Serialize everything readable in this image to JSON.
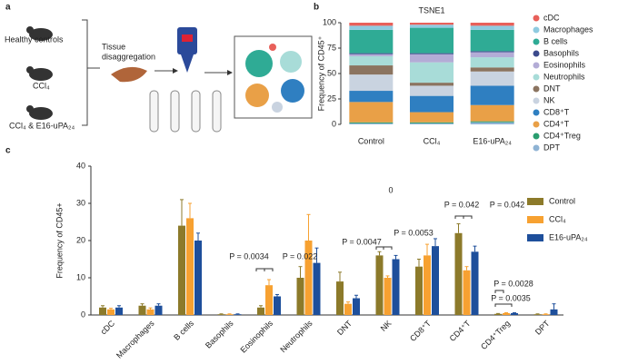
{
  "panel_labels": [
    "a",
    "b",
    "c"
  ],
  "diagram": {
    "groups": [
      "Healthy controls",
      "CCl₄",
      "CCl₄ & E16-uPA₂₄"
    ],
    "step": [
      "Tissue",
      "disaggregation"
    ]
  },
  "chart_data": [
    {
      "type": "stacked-bar",
      "title": "TSNE1",
      "y_label": "Frequency of CD45⁺",
      "categories": [
        "Control",
        "CCl₄",
        "E16-uPA₂₄"
      ],
      "ylim": [
        0,
        100
      ],
      "yticks": [
        0,
        25,
        50,
        75,
        100
      ],
      "series": [
        {
          "name": "DPT",
          "color": "#8fb3d4",
          "values": [
            1,
            1,
            2
          ]
        },
        {
          "name": "CD4⁺Treg",
          "color": "#2a9d6f",
          "values": [
            1,
            1,
            1
          ]
        },
        {
          "name": "CD4⁺T",
          "color": "#e9a047",
          "values": [
            20,
            10,
            16
          ]
        },
        {
          "name": "CD8⁺T",
          "color": "#2f7fc1",
          "values": [
            11,
            16,
            19
          ]
        },
        {
          "name": "NK",
          "color": "#c9d3e0",
          "values": [
            16,
            10,
            14
          ]
        },
        {
          "name": "DNT",
          "color": "#8b7460",
          "values": [
            9,
            3,
            4
          ]
        },
        {
          "name": "Neutrophils",
          "color": "#a8dcd8",
          "values": [
            9,
            20,
            10
          ]
        },
        {
          "name": "Eosinophils",
          "color": "#b3acd6",
          "values": [
            2,
            8,
            5
          ]
        },
        {
          "name": "Basophils",
          "color": "#3b4a8c",
          "values": [
            1,
            1,
            1
          ]
        },
        {
          "name": "B cells",
          "color": "#2fab95",
          "values": [
            23,
            25,
            21
          ]
        },
        {
          "name": "Macrophages",
          "color": "#8fcbe0",
          "values": [
            4,
            3,
            4
          ]
        },
        {
          "name": "cDC",
          "color": "#e8605a",
          "values": [
            3,
            2,
            3
          ]
        }
      ]
    },
    {
      "type": "grouped-bar",
      "y_label": "Frequency of CD45+",
      "categories": [
        "cDC",
        "Macrophages",
        "B cells",
        "Basophils",
        "Eosinophils",
        "Neutrophils",
        "DNT",
        "NK",
        "CD8⁺T",
        "CD4⁺T",
        "CD4⁺Treg",
        "DPT"
      ],
      "ylim": [
        0,
        40
      ],
      "yticks": [
        0,
        10,
        20,
        30,
        40
      ],
      "series": [
        {
          "name": "Control",
          "color": "#8c7a2a",
          "values": [
            2,
            2.5,
            24,
            0.2,
            2,
            10,
            9,
            16,
            13,
            22,
            0.3,
            0.2
          ],
          "errors": [
            0.5,
            0.5,
            7,
            0.1,
            0.5,
            3,
            2.5,
            1,
            2,
            2.5,
            0.1,
            0.1
          ]
        },
        {
          "name": "CCl₄",
          "color": "#f7a131",
          "values": [
            1.5,
            1.5,
            26,
            0.2,
            8,
            20,
            3,
            10,
            16,
            12,
            0.5,
            0.2
          ],
          "errors": [
            0.3,
            0.4,
            4,
            0.1,
            1.5,
            7,
            0.5,
            0.5,
            3,
            1,
            0.1,
            0.1
          ]
        },
        {
          "name": "E16-uPA₂₄",
          "color": "#1e4f9b",
          "values": [
            2,
            2.5,
            20,
            0.2,
            5,
            14,
            4.5,
            15,
            18.5,
            17,
            0.5,
            1.5
          ],
          "errors": [
            0.5,
            0.5,
            2,
            0.1,
            0.5,
            4,
            0.8,
            1,
            2,
            1.5,
            0.1,
            1.5
          ]
        }
      ],
      "annotations": [
        "P = 0.0034",
        "P = 0.022",
        "P = 0.0047",
        "P = 0.0053",
        "P = 0.042",
        "P = 0.042",
        "P = 0.0028",
        "P = 0.0035",
        "0"
      ]
    }
  ]
}
